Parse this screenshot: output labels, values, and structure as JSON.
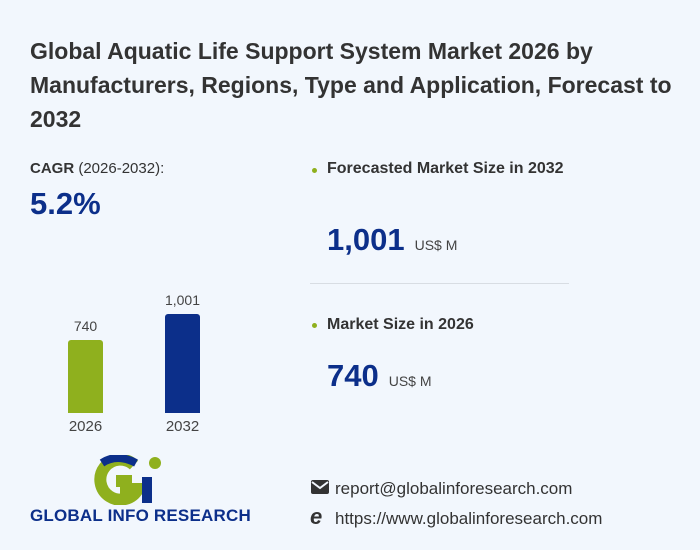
{
  "title": "Global Aquatic Life Support System Market 2026 by Manufacturers, Regions, Type and Application, Forecast to 2032",
  "cagr": {
    "label_bold": "CAGR",
    "label_period": "(2026-2032):",
    "value": "5.2%"
  },
  "stats": [
    {
      "label": "Forecasted Market Size in 2032",
      "value": "1,001",
      "unit": "US$ M"
    },
    {
      "label": "Market Size in 2026",
      "value": "740",
      "unit": "US$ M"
    }
  ],
  "colors": {
    "accent_green": "#8fb01e",
    "brand_blue": "#0c2f8a"
  },
  "chart_data": {
    "type": "bar",
    "categories": [
      "2026",
      "2032"
    ],
    "values": [
      740,
      1001
    ],
    "value_labels": [
      "740",
      "1,001"
    ],
    "colors": [
      "#8fb01e",
      "#0c2f8a"
    ]
  },
  "logo": {
    "text": "GLOBAL INFO RESEARCH"
  },
  "contact": {
    "email": "report@globalinforesearch.com",
    "website": "https://www.globalinforesearch.com",
    "email_icon": "envelope-icon",
    "web_icon": "internet-explorer-icon"
  },
  "watermark": "GLOBAL INFO RESEARCH"
}
